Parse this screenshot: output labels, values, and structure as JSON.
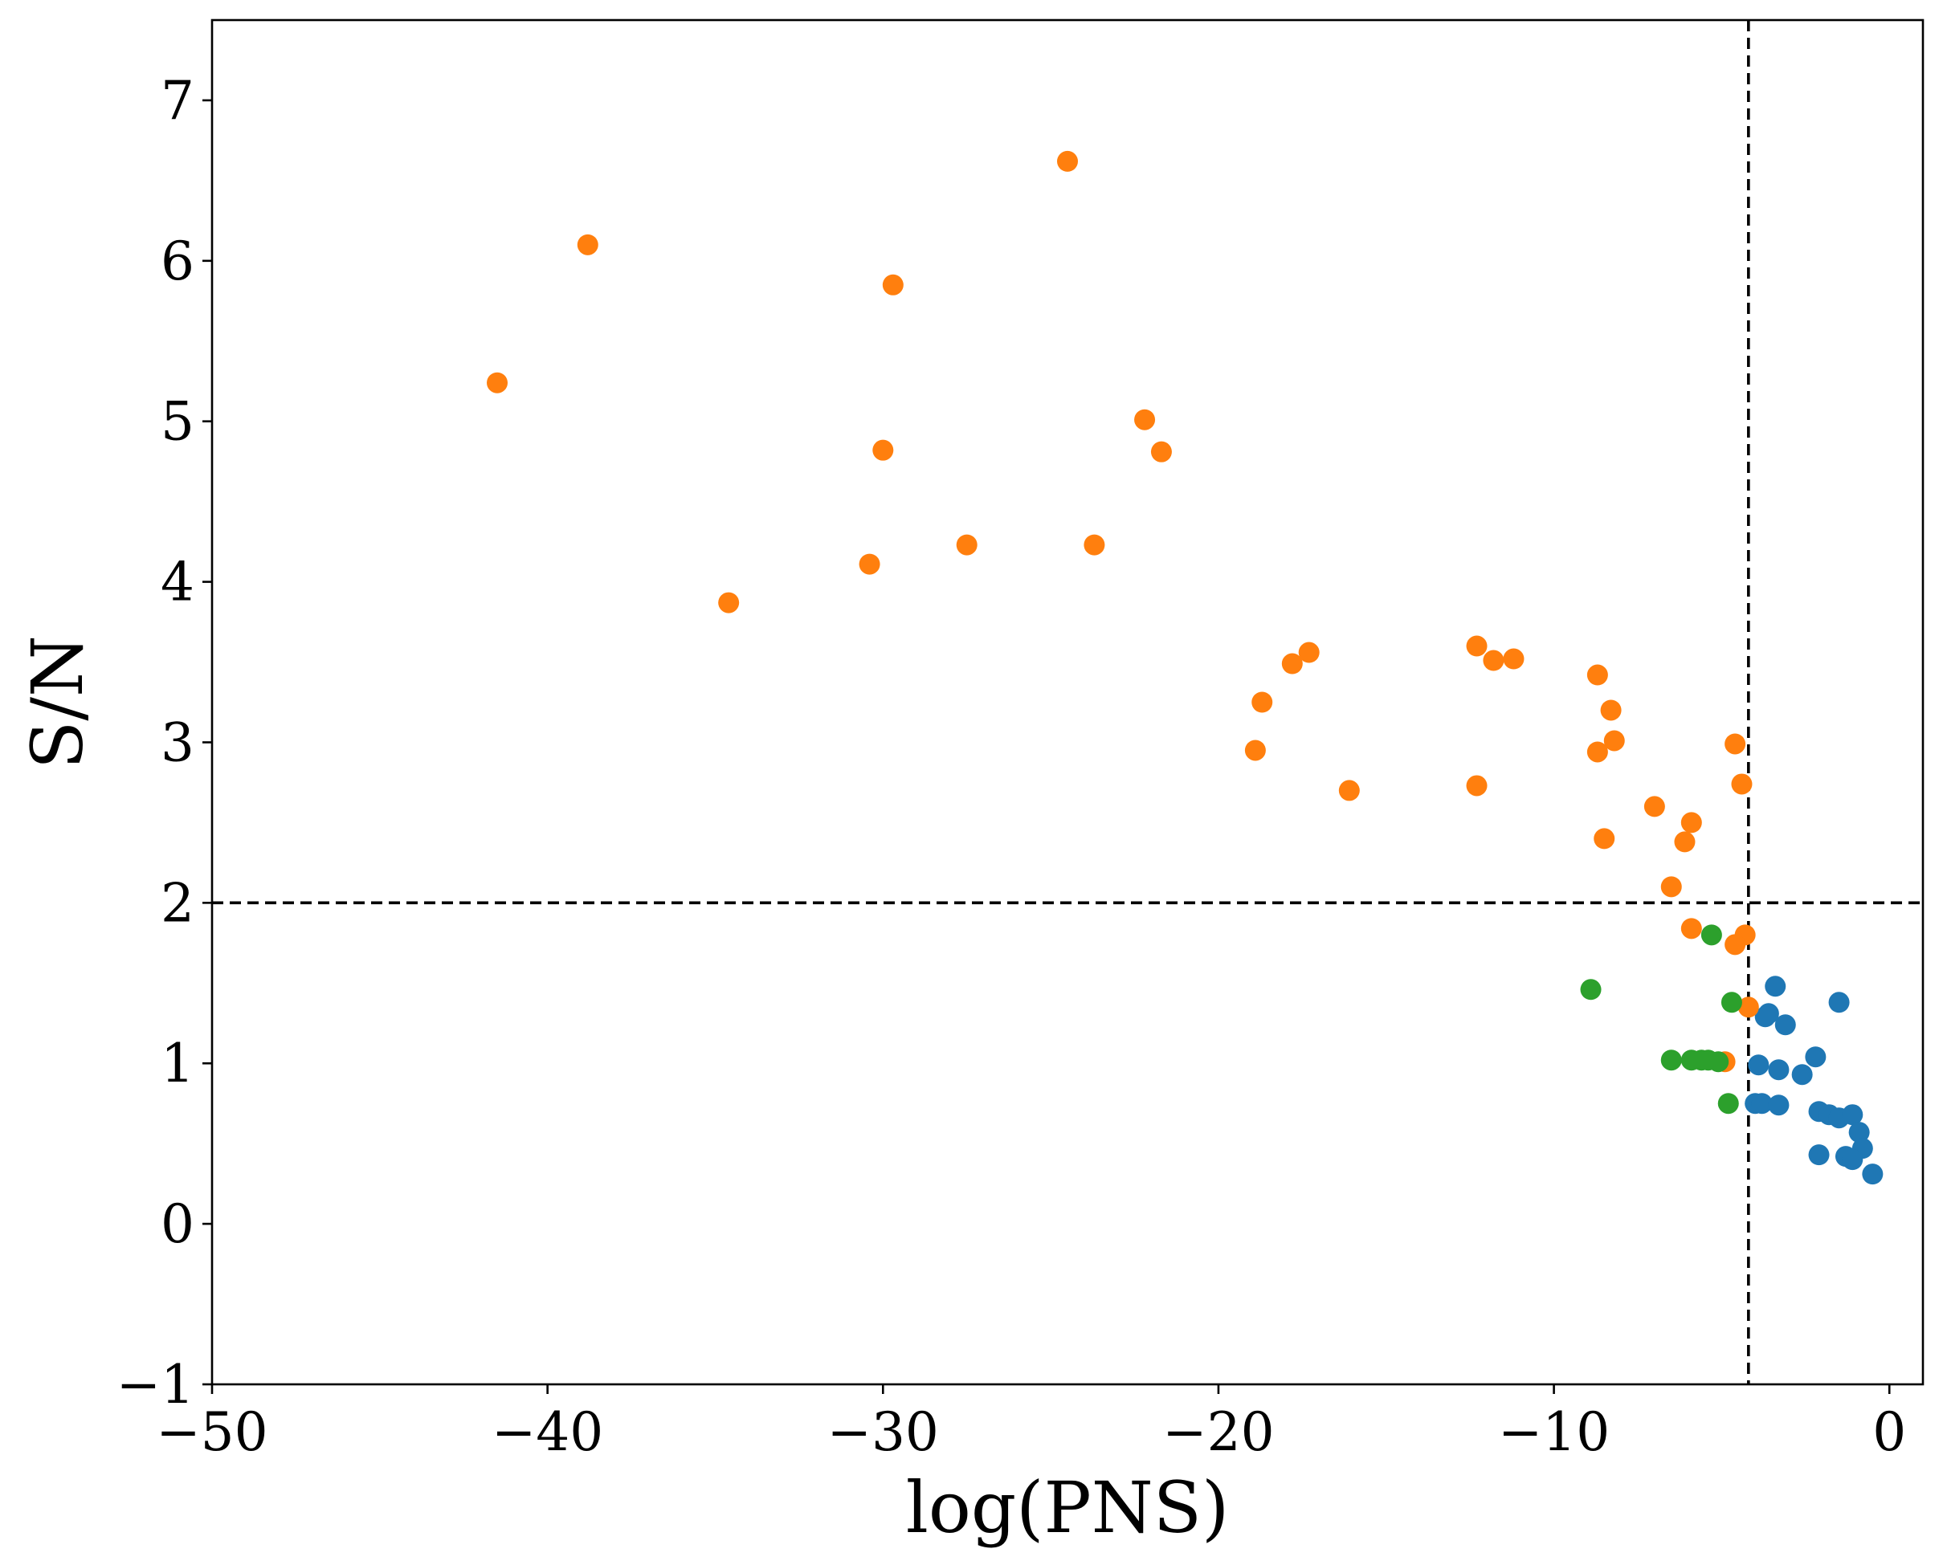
{
  "chart_data": {
    "type": "scatter",
    "title": "",
    "xlabel": "log(PNS)",
    "ylabel": "S/N",
    "xlim": [
      -50,
      1
    ],
    "ylim": [
      -1,
      7.5
    ],
    "xticks": [
      -50,
      -40,
      -30,
      -20,
      -10,
      0
    ],
    "yticks": [
      -1,
      0,
      1,
      2,
      3,
      4,
      5,
      6,
      7
    ],
    "xtick_labels": [
      "−50",
      "−40",
      "−30",
      "−20",
      "−10",
      "0"
    ],
    "ytick_labels": [
      "−1",
      "0",
      "1",
      "2",
      "3",
      "4",
      "5",
      "6",
      "7"
    ],
    "grid": false,
    "reference_lines": [
      {
        "orientation": "horizontal",
        "value": 2.0,
        "style": "dashed",
        "color": "#000000"
      },
      {
        "orientation": "vertical",
        "value": -4.2,
        "style": "dashed",
        "color": "#000000"
      }
    ],
    "series": [
      {
        "name": "blue",
        "color": "#1f77b4",
        "points": [
          [
            -3.4,
            1.48
          ],
          [
            -1.5,
            1.38
          ],
          [
            -3.6,
            1.31
          ],
          [
            -3.7,
            1.29
          ],
          [
            -3.1,
            1.24
          ],
          [
            -2.2,
            1.04
          ],
          [
            -3.9,
            0.99
          ],
          [
            -3.3,
            0.96
          ],
          [
            -2.6,
            0.93
          ],
          [
            -4.0,
            0.75
          ],
          [
            -3.8,
            0.75
          ],
          [
            -3.3,
            0.74
          ],
          [
            -2.1,
            0.7
          ],
          [
            -1.8,
            0.68
          ],
          [
            -1.5,
            0.66
          ],
          [
            -1.1,
            0.68
          ],
          [
            -0.9,
            0.57
          ],
          [
            -0.8,
            0.47
          ],
          [
            -2.1,
            0.43
          ],
          [
            -1.3,
            0.42
          ],
          [
            -1.1,
            0.4
          ],
          [
            -0.5,
            0.31
          ]
        ]
      },
      {
        "name": "orange",
        "color": "#ff7f0e",
        "points": [
          [
            -24.5,
            6.62
          ],
          [
            -38.8,
            6.1
          ],
          [
            -29.7,
            5.85
          ],
          [
            -41.5,
            5.24
          ],
          [
            -22.2,
            5.01
          ],
          [
            -30.0,
            4.82
          ],
          [
            -21.7,
            4.81
          ],
          [
            -27.5,
            4.23
          ],
          [
            -23.7,
            4.23
          ],
          [
            -30.4,
            4.11
          ],
          [
            -34.6,
            3.87
          ],
          [
            -12.3,
            3.6
          ],
          [
            -17.3,
            3.56
          ],
          [
            -11.8,
            3.51
          ],
          [
            -11.2,
            3.52
          ],
          [
            -17.8,
            3.49
          ],
          [
            -8.7,
            3.42
          ],
          [
            -18.7,
            3.25
          ],
          [
            -8.3,
            3.2
          ],
          [
            -4.6,
            2.99
          ],
          [
            -8.2,
            3.01
          ],
          [
            -18.9,
            2.95
          ],
          [
            -8.7,
            2.94
          ],
          [
            -4.4,
            2.74
          ],
          [
            -12.3,
            2.73
          ],
          [
            -16.1,
            2.7
          ],
          [
            -7.0,
            2.6
          ],
          [
            -5.9,
            2.5
          ],
          [
            -6.1,
            2.38
          ],
          [
            -8.5,
            2.4
          ],
          [
            -6.5,
            2.1
          ],
          [
            -5.9,
            1.84
          ],
          [
            -4.3,
            1.8
          ],
          [
            -4.6,
            1.74
          ],
          [
            -4.2,
            1.35
          ],
          [
            -4.9,
            1.01
          ]
        ]
      },
      {
        "name": "green",
        "color": "#2ca02c",
        "points": [
          [
            -5.3,
            1.8
          ],
          [
            -8.9,
            1.46
          ],
          [
            -4.7,
            1.38
          ],
          [
            -6.5,
            1.02
          ],
          [
            -5.9,
            1.02
          ],
          [
            -5.6,
            1.02
          ],
          [
            -5.4,
            1.02
          ],
          [
            -5.1,
            1.01
          ],
          [
            -4.8,
            0.75
          ]
        ]
      }
    ]
  }
}
